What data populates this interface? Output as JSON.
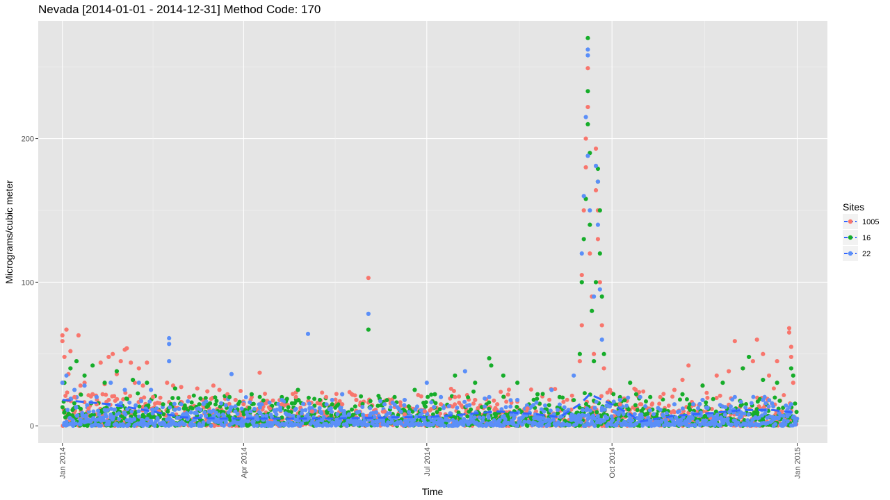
{
  "chart_data": {
    "type": "scatter",
    "title": "Nevada [2014-01-01 - 2014-12-31] Method Code: 170",
    "xlabel": "Time",
    "ylabel": "Micrograms/cubic meter",
    "x_ticks": [
      {
        "label": "Jan 2014",
        "date": "2014-01-01"
      },
      {
        "label": "Apr 2014",
        "date": "2014-04-01"
      },
      {
        "label": "Jul 2014",
        "date": "2014-07-01"
      },
      {
        "label": "Oct 2014",
        "date": "2014-10-01"
      },
      {
        "label": "Jan 2015",
        "date": "2015-01-01"
      }
    ],
    "y_ticks": [
      0,
      100,
      200
    ],
    "ylim": [
      -12,
      282
    ],
    "xlim": [
      "2013-12-20",
      "2015-01-16"
    ],
    "grid": true,
    "background": "#e5e5e5",
    "legend": {
      "title": "Sites",
      "position": "right",
      "entries": [
        {
          "label": "1005",
          "color": "#f8766d"
        },
        {
          "label": "16",
          "color": "#16ad2a"
        },
        {
          "label": "22",
          "color": "#5b8ff8"
        }
      ]
    },
    "series": [
      {
        "name": "1005",
        "color": "#f8766d",
        "points": [
          [
            "2014-01-01",
            63
          ],
          [
            "2014-01-01",
            59
          ],
          [
            "2014-01-02",
            48
          ],
          [
            "2014-01-03",
            67
          ],
          [
            "2014-01-04",
            36
          ],
          [
            "2014-01-05",
            52
          ],
          [
            "2014-01-07",
            20
          ],
          [
            "2014-01-09",
            63
          ],
          [
            "2014-01-10",
            28
          ],
          [
            "2014-01-12",
            30
          ],
          [
            "2014-01-14",
            12
          ],
          [
            "2014-01-16",
            22
          ],
          [
            "2014-01-18",
            15
          ],
          [
            "2014-01-20",
            44
          ],
          [
            "2014-01-22",
            29
          ],
          [
            "2014-01-24",
            48
          ],
          [
            "2014-01-26",
            50
          ],
          [
            "2014-01-28",
            36
          ],
          [
            "2014-01-30",
            45
          ],
          [
            "2014-02-01",
            53
          ],
          [
            "2014-02-02",
            54
          ],
          [
            "2014-02-04",
            44
          ],
          [
            "2014-02-06",
            30
          ],
          [
            "2014-02-08",
            40
          ],
          [
            "2014-02-10",
            28
          ],
          [
            "2014-02-12",
            44
          ],
          [
            "2014-02-15",
            20
          ],
          [
            "2014-02-18",
            10
          ],
          [
            "2014-02-22",
            30
          ],
          [
            "2014-02-25",
            28
          ],
          [
            "2014-03-01",
            27
          ],
          [
            "2014-03-05",
            20
          ],
          [
            "2014-03-09",
            26
          ],
          [
            "2014-03-14",
            24
          ],
          [
            "2014-03-17",
            28
          ],
          [
            "2014-03-20",
            25
          ],
          [
            "2014-03-24",
            22
          ],
          [
            "2014-03-28",
            18
          ],
          [
            "2014-04-01",
            15
          ],
          [
            "2014-04-05",
            20
          ],
          [
            "2014-04-09",
            37
          ],
          [
            "2014-04-14",
            12
          ],
          [
            "2014-04-20",
            15
          ],
          [
            "2014-04-27",
            20
          ],
          [
            "2014-05-05",
            10
          ],
          [
            "2014-05-12",
            20
          ],
          [
            "2014-05-20",
            15
          ],
          [
            "2014-05-27",
            18
          ],
          [
            "2014-06-02",
            103
          ],
          [
            "2014-06-10",
            10
          ],
          [
            "2014-06-20",
            8
          ],
          [
            "2014-06-30",
            10
          ],
          [
            "2014-07-08",
            15
          ],
          [
            "2014-07-15",
            20
          ],
          [
            "2014-07-25",
            18
          ],
          [
            "2014-08-05",
            15
          ],
          [
            "2014-08-20",
            12
          ],
          [
            "2014-09-05",
            20
          ],
          [
            "2014-09-15",
            45
          ],
          [
            "2014-09-16",
            70
          ],
          [
            "2014-09-16",
            105
          ],
          [
            "2014-09-17",
            150
          ],
          [
            "2014-09-18",
            180
          ],
          [
            "2014-09-18",
            200
          ],
          [
            "2014-09-19",
            249
          ],
          [
            "2014-09-19",
            222
          ],
          [
            "2014-09-20",
            120
          ],
          [
            "2014-09-21",
            90
          ],
          [
            "2014-09-22",
            50
          ],
          [
            "2014-09-23",
            193
          ],
          [
            "2014-09-23",
            164
          ],
          [
            "2014-09-24",
            150
          ],
          [
            "2014-09-24",
            130
          ],
          [
            "2014-09-25",
            100
          ],
          [
            "2014-09-26",
            70
          ],
          [
            "2014-09-27",
            40
          ],
          [
            "2014-09-30",
            25
          ],
          [
            "2014-10-05",
            15
          ],
          [
            "2014-10-15",
            15
          ],
          [
            "2014-10-25",
            20
          ],
          [
            "2014-11-01",
            25
          ],
          [
            "2014-11-05",
            32
          ],
          [
            "2014-11-08",
            42
          ],
          [
            "2014-11-15",
            28
          ],
          [
            "2014-11-22",
            35
          ],
          [
            "2014-11-28",
            38
          ],
          [
            "2014-12-01",
            59
          ],
          [
            "2014-12-05",
            40
          ],
          [
            "2014-12-10",
            45
          ],
          [
            "2014-12-12",
            60
          ],
          [
            "2014-12-15",
            50
          ],
          [
            "2014-12-18",
            35
          ],
          [
            "2014-12-22",
            45
          ],
          [
            "2014-12-28",
            68
          ],
          [
            "2014-12-28",
            65
          ],
          [
            "2014-12-29",
            55
          ],
          [
            "2014-12-29",
            48
          ],
          [
            "2014-12-30",
            30
          ]
        ]
      },
      {
        "name": "16",
        "color": "#16ad2a",
        "points": [
          [
            "2014-01-02",
            30
          ],
          [
            "2014-01-05",
            40
          ],
          [
            "2014-01-08",
            45
          ],
          [
            "2014-01-12",
            35
          ],
          [
            "2014-01-16",
            42
          ],
          [
            "2014-01-22",
            30
          ],
          [
            "2014-01-28",
            38
          ],
          [
            "2014-02-05",
            32
          ],
          [
            "2014-02-12",
            30
          ],
          [
            "2014-02-20",
            15
          ],
          [
            "2014-02-26",
            26
          ],
          [
            "2014-03-10",
            15
          ],
          [
            "2014-03-25",
            20
          ],
          [
            "2014-04-05",
            22
          ],
          [
            "2014-04-20",
            20
          ],
          [
            "2014-04-28",
            25
          ],
          [
            "2014-05-15",
            15
          ],
          [
            "2014-06-02",
            67
          ],
          [
            "2014-06-15",
            20
          ],
          [
            "2014-06-25",
            25
          ],
          [
            "2014-07-05",
            22
          ],
          [
            "2014-07-15",
            35
          ],
          [
            "2014-07-25",
            30
          ],
          [
            "2014-08-01",
            47
          ],
          [
            "2014-08-02",
            42
          ],
          [
            "2014-08-08",
            35
          ],
          [
            "2014-08-15",
            30
          ],
          [
            "2014-08-25",
            22
          ],
          [
            "2014-09-05",
            20
          ],
          [
            "2014-09-15",
            50
          ],
          [
            "2014-09-16",
            100
          ],
          [
            "2014-09-17",
            130
          ],
          [
            "2014-09-18",
            158
          ],
          [
            "2014-09-19",
            270
          ],
          [
            "2014-09-19",
            233
          ],
          [
            "2014-09-19",
            210
          ],
          [
            "2014-09-20",
            190
          ],
          [
            "2014-09-20",
            140
          ],
          [
            "2014-09-21",
            80
          ],
          [
            "2014-09-22",
            45
          ],
          [
            "2014-09-23",
            100
          ],
          [
            "2014-09-24",
            179
          ],
          [
            "2014-09-24",
            170
          ],
          [
            "2014-09-25",
            150
          ],
          [
            "2014-09-25",
            120
          ],
          [
            "2014-09-26",
            90
          ],
          [
            "2014-09-27",
            50
          ],
          [
            "2014-10-05",
            20
          ],
          [
            "2014-10-10",
            30
          ],
          [
            "2014-10-20",
            20
          ],
          [
            "2014-11-05",
            22
          ],
          [
            "2014-11-15",
            28
          ],
          [
            "2014-11-25",
            30
          ],
          [
            "2014-12-05",
            40
          ],
          [
            "2014-12-08",
            48
          ],
          [
            "2014-12-15",
            32
          ],
          [
            "2014-12-22",
            30
          ],
          [
            "2014-12-29",
            40
          ],
          [
            "2014-12-30",
            35
          ]
        ]
      },
      {
        "name": "22",
        "color": "#5b8ff8",
        "points": [
          [
            "2014-01-01",
            30
          ],
          [
            "2014-01-03",
            35
          ],
          [
            "2014-01-07",
            25
          ],
          [
            "2014-01-12",
            28
          ],
          [
            "2014-01-18",
            20
          ],
          [
            "2014-01-25",
            30
          ],
          [
            "2014-02-01",
            25
          ],
          [
            "2014-02-08",
            30
          ],
          [
            "2014-02-14",
            25
          ],
          [
            "2014-02-23",
            61
          ],
          [
            "2014-02-23",
            57
          ],
          [
            "2014-02-23",
            45
          ],
          [
            "2014-03-01",
            15
          ],
          [
            "2014-03-15",
            10
          ],
          [
            "2014-03-26",
            36
          ],
          [
            "2014-04-10",
            15
          ],
          [
            "2014-04-20",
            18
          ],
          [
            "2014-05-03",
            64
          ],
          [
            "2014-05-15",
            18
          ],
          [
            "2014-05-20",
            22
          ],
          [
            "2014-06-02",
            78
          ],
          [
            "2014-06-10",
            15
          ],
          [
            "2014-06-20",
            18
          ],
          [
            "2014-07-01",
            30
          ],
          [
            "2014-07-08",
            20
          ],
          [
            "2014-07-20",
            38
          ],
          [
            "2014-08-01",
            20
          ],
          [
            "2014-08-15",
            18
          ],
          [
            "2014-09-01",
            25
          ],
          [
            "2014-09-12",
            35
          ],
          [
            "2014-09-16",
            120
          ],
          [
            "2014-09-17",
            160
          ],
          [
            "2014-09-18",
            215
          ],
          [
            "2014-09-19",
            262
          ],
          [
            "2014-09-19",
            258
          ],
          [
            "2014-09-19",
            188
          ],
          [
            "2014-09-20",
            150
          ],
          [
            "2014-09-22",
            90
          ],
          [
            "2014-09-23",
            181
          ],
          [
            "2014-09-24",
            170
          ],
          [
            "2014-09-24",
            140
          ],
          [
            "2014-09-25",
            95
          ],
          [
            "2014-09-26",
            60
          ],
          [
            "2014-10-05",
            18
          ],
          [
            "2014-10-15",
            20
          ],
          [
            "2014-11-01",
            15
          ],
          [
            "2014-11-15",
            18
          ],
          [
            "2014-12-01",
            20
          ],
          [
            "2014-12-15",
            18
          ],
          [
            "2014-12-29",
            15
          ]
        ]
      }
    ],
    "trend": {
      "color": "#3366ff",
      "style": "dashed",
      "points": [
        [
          "2014-01-01",
          18
        ],
        [
          "2014-01-25",
          15
        ],
        [
          "2014-02-15",
          10
        ],
        [
          "2014-03-01",
          6
        ],
        [
          "2014-03-20",
          5
        ],
        [
          "2014-04-15",
          5
        ],
        [
          "2014-05-15",
          5
        ],
        [
          "2014-06-15",
          6
        ],
        [
          "2014-07-01",
          6
        ],
        [
          "2014-07-20",
          8
        ],
        [
          "2014-08-05",
          10
        ],
        [
          "2014-08-25",
          8
        ],
        [
          "2014-09-05",
          6
        ],
        [
          "2014-09-15",
          15
        ],
        [
          "2014-09-20",
          22
        ],
        [
          "2014-10-01",
          15
        ],
        [
          "2014-10-10",
          8
        ],
        [
          "2014-10-15",
          3
        ],
        [
          "2014-11-01",
          7
        ],
        [
          "2014-11-20",
          9
        ],
        [
          "2014-12-05",
          11
        ],
        [
          "2014-12-20",
          11
        ],
        [
          "2014-12-31",
          9
        ]
      ]
    },
    "band": [
      {
        "series": "1005",
        "from": "2014-01-01",
        "to": "2014-12-31",
        "low": 0,
        "high": 20
      },
      {
        "series": "16",
        "from": "2014-01-01",
        "to": "2014-12-31",
        "low": 0,
        "high": 18
      },
      {
        "series": "22",
        "from": "2014-01-01",
        "to": "2014-12-31",
        "low": 0,
        "high": 15
      }
    ]
  }
}
